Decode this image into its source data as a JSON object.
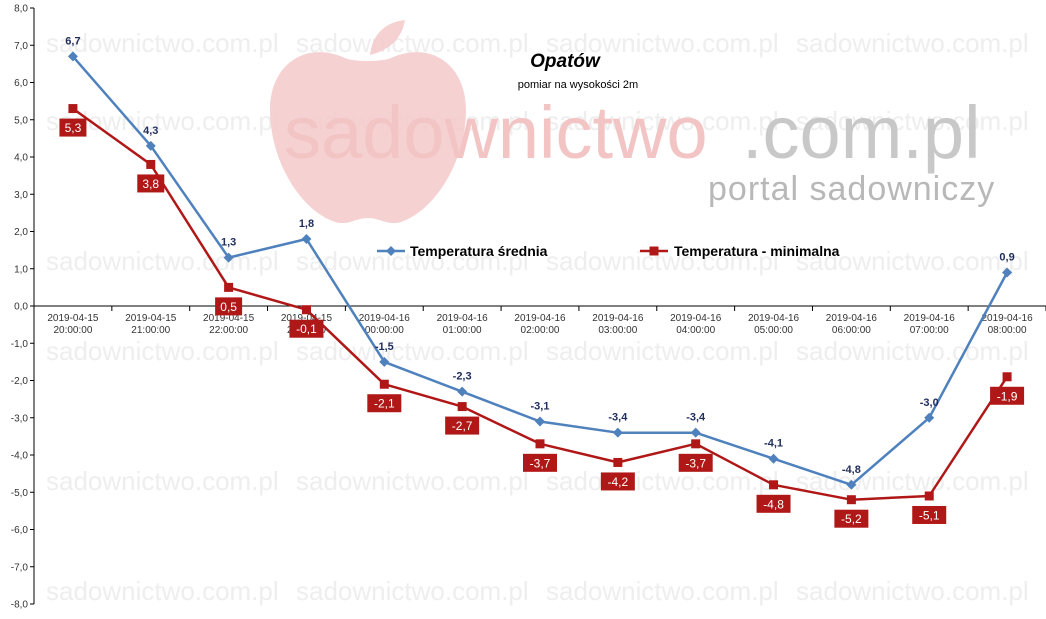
{
  "colors": {
    "average": "#4f81bd",
    "minimum": "#b01818",
    "watermark_red": "#f2c4c4",
    "watermark_gray": "#c8c8c8",
    "axis": "#000000"
  },
  "watermark": {
    "text_part1": "sadownictwo",
    "text_part2": ".com.pl",
    "subtitle": "portal sadowniczy",
    "tile_text": "sadownictwo.com.pl"
  },
  "chart_data": {
    "type": "line",
    "title": "Opatów",
    "subtitle": "pomiar na wysokości 2m",
    "x": [
      [
        "2019-04-15",
        "20:00:00"
      ],
      [
        "2019-04-15",
        "21:00:00"
      ],
      [
        "2019-04-15",
        "22:00:00"
      ],
      [
        "2019-04-15",
        "23:00:00"
      ],
      [
        "2019-04-16",
        "00:00:00"
      ],
      [
        "2019-04-16",
        "01:00:00"
      ],
      [
        "2019-04-16",
        "02:00:00"
      ],
      [
        "2019-04-16",
        "03:00:00"
      ],
      [
        "2019-04-16",
        "04:00:00"
      ],
      [
        "2019-04-16",
        "05:00:00"
      ],
      [
        "2019-04-16",
        "06:00:00"
      ],
      [
        "2019-04-16",
        "07:00:00"
      ],
      [
        "2019-04-16",
        "08:00:00"
      ]
    ],
    "series": [
      {
        "name": "Temperatura średnia",
        "values": [
          6.7,
          4.3,
          1.3,
          1.8,
          -1.5,
          -2.3,
          -3.1,
          -3.4,
          -3.4,
          -4.1,
          -4.8,
          -3.0,
          0.9
        ],
        "labels": [
          "6,7",
          "4,3",
          "1,3",
          "1,8",
          "-1,5",
          "-2,3",
          "-3,1",
          "-3,4",
          "-3,4",
          "-4,1",
          "-4,8",
          "-3,0",
          "0,9"
        ]
      },
      {
        "name": "Temperatura - minimalna",
        "values": [
          5.3,
          3.8,
          0.5,
          -0.1,
          -2.1,
          -2.7,
          -3.7,
          -4.2,
          -3.7,
          -4.8,
          -5.2,
          -5.1,
          -1.9
        ],
        "labels": [
          "5,3",
          "3,8",
          "0,5",
          "-0,1",
          "-2,1",
          "-2,7",
          "-3,7",
          "-4,2",
          "-3,7",
          "-4,8",
          "-5,2",
          "-5,1",
          "-1,9"
        ]
      }
    ],
    "ylim": [
      -8,
      8
    ],
    "yticks": [
      8,
      7,
      6,
      5,
      4,
      3,
      2,
      1,
      0,
      -1,
      -2,
      -3,
      -4,
      -5,
      -6,
      -7,
      -8
    ],
    "ytick_labels": [
      "8,0",
      "7,0",
      "6,0",
      "5,0",
      "4,0",
      "3,0",
      "2,0",
      "1,0",
      "0,0",
      "-1,0",
      "-2,0",
      "-3,0",
      "-4,0",
      "-5,0",
      "-6,0",
      "-7,0",
      "-8,0"
    ],
    "grid": false,
    "legend_position": "center"
  }
}
